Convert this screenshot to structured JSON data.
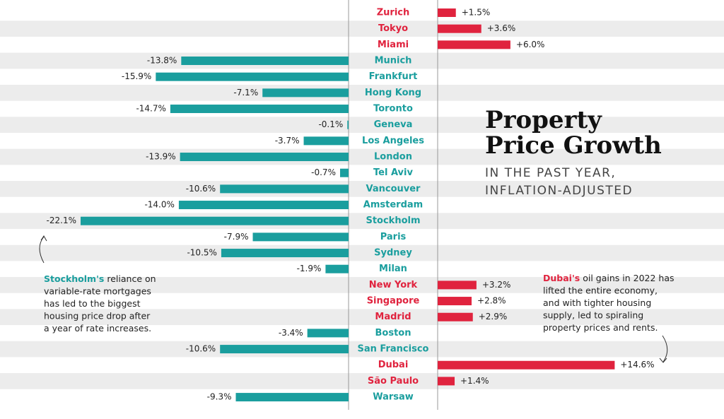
{
  "chart_data": {
    "type": "bar",
    "orientation": "horizontal",
    "title": "Property Price Growth",
    "subtitle": [
      "IN THE PAST YEAR,",
      "INFLATION-ADJUSTED"
    ],
    "categories": [
      "Zurich",
      "Tokyo",
      "Miami",
      "Munich",
      "Frankfurt",
      "Hong Kong",
      "Toronto",
      "Geneva",
      "Los Angeles",
      "London",
      "Tel Aviv",
      "Vancouver",
      "Amsterdam",
      "Stockholm",
      "Paris",
      "Sydney",
      "Milan",
      "New York",
      "Singapore",
      "Madrid",
      "Boston",
      "San Francisco",
      "Dubai",
      "São Paulo",
      "Warsaw"
    ],
    "values": [
      1.5,
      3.6,
      6.0,
      -13.8,
      -15.9,
      -7.1,
      -14.7,
      -0.1,
      -3.7,
      -13.9,
      -0.7,
      -10.6,
      -14.0,
      -22.1,
      -7.9,
      -10.5,
      -1.9,
      3.2,
      2.8,
      2.9,
      -3.4,
      -10.6,
      14.6,
      1.4,
      -9.3
    ],
    "value_labels": [
      "+1.5%",
      "+3.6%",
      "+6.0%",
      "-13.8%",
      "-15.9%",
      "-7.1%",
      "-14.7%",
      "-0.1%",
      "-3.7%",
      "-13.9%",
      "-0.7%",
      "-10.6%",
      "-14.0%",
      "-22.1%",
      "-7.9%",
      "-10.5%",
      "-1.9%",
      "+3.2%",
      "+2.8%",
      "+2.9%",
      "-3.4%",
      "-10.6%",
      "+14.6%",
      "+1.4%",
      "-9.3%"
    ],
    "positive_color": "#e0233e",
    "negative_color": "#1a9e9e",
    "annotations": [
      {
        "highlight": "Stockholm's",
        "lines": [
          "reliance on",
          "variable-rate mortgages",
          "has led to the biggest",
          "housing price drop after",
          "a year of rate increases."
        ]
      },
      {
        "highlight": "Dubai's",
        "lines": [
          "oil gains in 2022 has",
          "lifted the entire economy,",
          "and with tighter housing",
          "supply, led to spiraling",
          "property prices and rents."
        ]
      }
    ]
  }
}
